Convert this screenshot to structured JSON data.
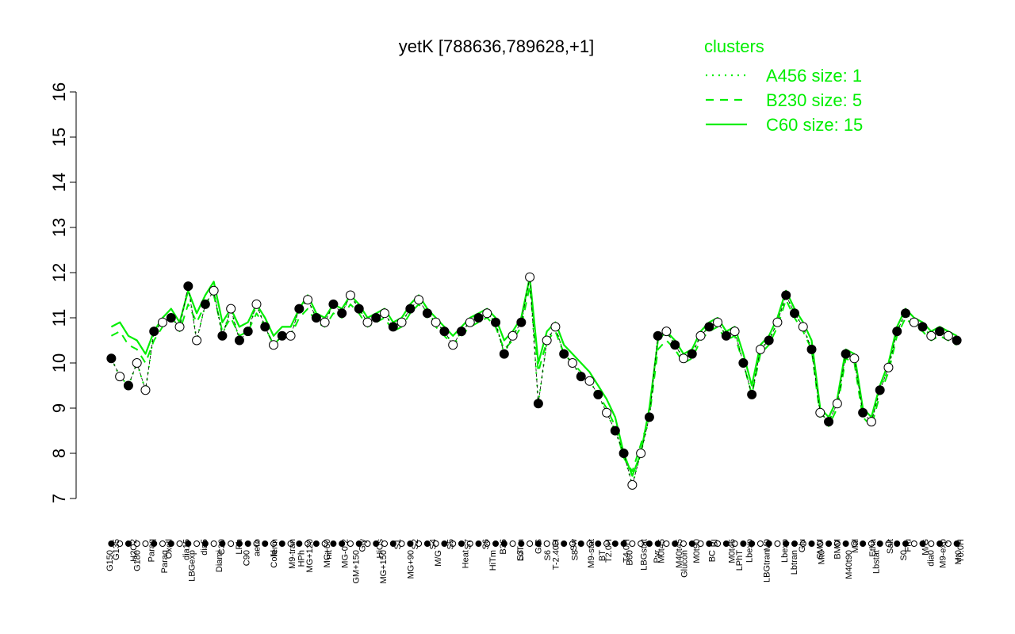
{
  "chart_data": {
    "type": "line",
    "title": "yetK [788636,789628,+1]",
    "xlabel": "",
    "ylabel": "",
    "ylim": [
      7,
      16
    ],
    "yticks": [
      7,
      8,
      9,
      10,
      11,
      12,
      13,
      14,
      15,
      16
    ],
    "grid": false,
    "legend_position": "top-right",
    "accent_color": "#00ee00",
    "legend": {
      "title": "clusters",
      "items": [
        {
          "label": "A456 size: 1",
          "dash": "dotted"
        },
        {
          "label": "B230 size: 5",
          "dash": "dashed"
        },
        {
          "label": "C60 size: 15",
          "dash": "solid"
        }
      ]
    },
    "x_tick_labels_top": [
      "G135",
      "H2O2",
      "Paraq",
      "Oxctl",
      "dia15",
      "dia5",
      "C30",
      "LPh",
      "aero",
      "ferm",
      "M9-tran",
      "MG+120",
      "MG+60",
      "MG-0.2",
      "Gly",
      "HiOs",
      "S1",
      "S2",
      "S4",
      "S5",
      "S7",
      "S6",
      "B36",
      "LoTm",
      "G/S",
      "T-2.40H",
      "Sw",
      "M9-stat",
      "T2.0H",
      "T4.0H",
      "LBGstat",
      "M0t45",
      "M40t45",
      "M0t90",
      "BI",
      "M0t45",
      "Lbexp",
      "M9",
      "Lbexp",
      "Glu",
      "SMM",
      "BMM",
      "Mal",
      "Etha",
      "Salt",
      "Fru",
      "M/G",
      "M9-exp",
      "T0.0H"
    ],
    "x_tick_labels_bottom": [
      "G150",
      "G180",
      "Paraq",
      "LBGexp",
      "Diami",
      "C90",
      "Cold",
      "HPh",
      "nit",
      "GM+150",
      "MG+150",
      "MG+90",
      "M/G",
      "Heat",
      "HiTm",
      "S3",
      "S6",
      "S8",
      "BT",
      "B60",
      "Pyr",
      "Glucon",
      "BC",
      "LPhT",
      "LBGtran",
      "Lbtran",
      "Mt0",
      "M40t90",
      "Lbstat",
      "S0",
      "dia0",
      "Mt0"
    ],
    "series_names_visible": false,
    "series": [
      {
        "cluster": "C60",
        "line": "solid",
        "x": [
          1,
          3,
          5,
          7,
          9,
          11,
          13,
          15,
          17,
          19,
          21,
          23,
          25,
          27,
          29,
          31,
          33,
          35,
          37,
          39,
          41,
          43,
          45,
          47,
          49,
          51,
          53,
          55,
          57,
          59,
          61,
          63,
          65,
          67,
          69,
          71,
          73,
          75,
          77,
          79,
          81,
          83,
          85,
          87,
          89,
          91,
          93,
          95,
          97,
          99,
          101,
          103,
          105,
          107,
          109,
          111,
          113,
          115,
          117,
          119,
          121,
          123,
          125,
          127,
          129,
          131,
          133,
          135,
          137,
          139,
          141,
          143,
          145,
          147,
          149,
          151,
          153,
          155,
          157,
          159,
          161,
          163,
          165,
          167,
          169,
          171,
          173,
          175,
          177,
          179,
          181,
          183,
          185,
          187,
          189,
          191,
          193,
          195,
          197,
          199
        ],
        "y": [
          10.8,
          10.9,
          10.6,
          10.5,
          10.2,
          10.7,
          11.0,
          11.2,
          10.9,
          11.6,
          11.1,
          11.5,
          11.8,
          10.9,
          11.2,
          10.8,
          10.9,
          11.3,
          11.0,
          10.6,
          10.8,
          10.8,
          11.2,
          11.5,
          11.1,
          11.0,
          11.3,
          11.2,
          11.5,
          11.3,
          11.0,
          11.1,
          11.2,
          10.9,
          11.0,
          11.3,
          11.5,
          11.2,
          11.0,
          10.8,
          10.6,
          10.8,
          11.0,
          11.1,
          11.2,
          11.0,
          10.5,
          10.7,
          11.0,
          11.9,
          10.0,
          10.7,
          10.9,
          10.4,
          10.2,
          10.0,
          9.8,
          9.5,
          9.2,
          8.8,
          8.0,
          7.5,
          8.0,
          9.0,
          10.5,
          10.7,
          10.5,
          10.2,
          10.3,
          10.7,
          10.9,
          11.0,
          10.7,
          10.8,
          10.2,
          9.5,
          10.4,
          10.6,
          11.0,
          11.6,
          11.2,
          10.9,
          10.5,
          9.0,
          8.8,
          9.2,
          10.3,
          10.2,
          9.0,
          8.8,
          9.5,
          10.0,
          10.8,
          11.2,
          11.0,
          10.9,
          10.7,
          10.8,
          10.7,
          10.6
        ]
      },
      {
        "cluster": "B230",
        "line": "dashed",
        "x": [
          1,
          3,
          5,
          7,
          9,
          11,
          13,
          15,
          17,
          19,
          21,
          23,
          25,
          27,
          29,
          31,
          33,
          35,
          37,
          39,
          41,
          43,
          45,
          47,
          49,
          51,
          53,
          55,
          57,
          59,
          61,
          63,
          65,
          67,
          69,
          71,
          73,
          75,
          77,
          79,
          81,
          83,
          85,
          87,
          89,
          91,
          93,
          95,
          97,
          99,
          101,
          103,
          105,
          107,
          109,
          111,
          113,
          115,
          117,
          119,
          121,
          123,
          125,
          127,
          129,
          131,
          133,
          135,
          137,
          139,
          141,
          143,
          145,
          147,
          149,
          151,
          153,
          155,
          157,
          159,
          161,
          163,
          165,
          167,
          169,
          171,
          173,
          175,
          177,
          179,
          181,
          183,
          185,
          187,
          189,
          191,
          193,
          195,
          197,
          199
        ],
        "y": [
          10.6,
          10.7,
          10.4,
          10.3,
          10.0,
          10.5,
          10.8,
          11.0,
          10.7,
          11.3,
          10.9,
          11.3,
          11.5,
          10.7,
          11.0,
          10.6,
          10.7,
          11.1,
          10.8,
          10.4,
          10.6,
          10.6,
          11.0,
          11.2,
          10.9,
          10.8,
          11.1,
          11.0,
          11.3,
          11.1,
          10.8,
          10.9,
          11.0,
          10.7,
          10.8,
          11.1,
          11.3,
          11.0,
          10.8,
          10.6,
          10.4,
          10.6,
          10.8,
          10.9,
          11.0,
          10.8,
          10.3,
          10.5,
          10.8,
          11.7,
          9.8,
          10.5,
          10.7,
          10.2,
          10.0,
          9.8,
          9.6,
          9.3,
          9.0,
          8.6,
          7.9,
          7.6,
          8.2,
          8.8,
          10.3,
          10.5,
          10.3,
          10.0,
          10.1,
          10.5,
          10.7,
          10.8,
          10.5,
          10.6,
          10.0,
          9.3,
          10.2,
          10.4,
          10.8,
          11.4,
          11.0,
          10.7,
          10.3,
          8.8,
          8.6,
          9.0,
          10.1,
          10.0,
          8.8,
          8.6,
          9.3,
          9.8,
          10.6,
          11.0,
          10.8,
          10.7,
          10.5,
          10.6,
          10.5,
          10.4
        ]
      },
      {
        "cluster": "A456",
        "line": "dotted",
        "x": [
          1,
          3,
          5,
          7,
          9,
          11,
          13,
          15,
          17,
          19,
          21,
          23,
          25,
          27,
          29,
          31,
          33,
          35,
          37,
          39,
          41,
          43,
          45,
          47,
          49,
          51,
          53,
          55,
          57,
          59,
          61,
          63,
          65,
          67,
          69,
          71,
          73,
          75,
          77,
          79,
          81,
          83,
          85,
          87,
          89,
          91,
          93,
          95,
          97,
          99,
          101,
          103,
          105,
          107,
          109,
          111,
          113,
          115,
          117,
          119,
          121,
          123,
          125,
          127,
          129,
          131,
          133,
          135,
          137,
          139,
          141,
          143,
          145,
          147,
          149,
          151,
          153,
          155,
          157,
          159,
          161,
          163,
          165,
          167,
          169,
          171,
          173,
          175,
          177,
          179,
          181,
          183,
          185,
          187,
          189,
          191,
          193,
          195,
          197,
          199
        ],
        "y": [
          10.1,
          9.7,
          9.5,
          10.0,
          9.4,
          10.7,
          10.9,
          11.0,
          10.8,
          11.7,
          10.5,
          11.3,
          11.6,
          10.6,
          11.2,
          10.5,
          10.7,
          11.3,
          10.8,
          10.4,
          10.6,
          10.6,
          11.2,
          11.4,
          11.0,
          10.9,
          11.3,
          11.1,
          11.5,
          11.2,
          10.9,
          11.0,
          11.1,
          10.8,
          10.9,
          11.2,
          11.4,
          11.1,
          10.9,
          10.7,
          10.4,
          10.7,
          10.9,
          11.0,
          11.1,
          10.9,
          10.2,
          10.6,
          10.9,
          11.9,
          9.1,
          10.5,
          10.8,
          10.2,
          10.0,
          9.7,
          9.6,
          9.3,
          8.9,
          8.5,
          8.0,
          7.3,
          8.0,
          8.8,
          10.6,
          10.7,
          10.4,
          10.1,
          10.2,
          10.6,
          10.8,
          10.9,
          10.6,
          10.7,
          10.0,
          9.3,
          10.3,
          10.5,
          10.9,
          11.5,
          11.1,
          10.8,
          10.3,
          8.9,
          8.7,
          9.1,
          10.2,
          10.1,
          8.9,
          8.7,
          9.4,
          9.9,
          10.7,
          11.1,
          10.9,
          10.8,
          10.6,
          10.7,
          10.6,
          10.5
        ]
      }
    ],
    "points": {
      "note_hidden": true,
      "x": [
        1,
        3,
        5,
        7,
        9,
        11,
        13,
        15,
        17,
        19,
        21,
        23,
        25,
        27,
        29,
        31,
        33,
        35,
        37,
        39,
        41,
        43,
        45,
        47,
        49,
        51,
        53,
        55,
        57,
        59,
        61,
        63,
        65,
        67,
        69,
        71,
        73,
        75,
        77,
        79,
        81,
        83,
        85,
        87,
        89,
        91,
        93,
        95,
        97,
        99,
        101,
        103,
        105,
        107,
        109,
        111,
        113,
        115,
        117,
        119,
        121,
        123,
        125,
        127,
        129,
        131,
        133,
        135,
        137,
        139,
        141,
        143,
        145,
        147,
        149,
        151,
        153,
        155,
        157,
        159,
        161,
        163,
        165,
        167,
        169,
        171,
        173,
        175,
        177,
        179,
        181,
        183,
        185,
        187,
        189,
        191,
        193,
        195,
        197,
        199
      ],
      "y": [
        10.1,
        9.7,
        9.5,
        10.0,
        9.4,
        10.7,
        10.9,
        11.0,
        10.8,
        11.7,
        10.5,
        11.3,
        11.6,
        10.6,
        11.2,
        10.5,
        10.7,
        11.3,
        10.8,
        10.4,
        10.6,
        10.6,
        11.2,
        11.4,
        11.0,
        10.9,
        11.3,
        11.1,
        11.5,
        11.2,
        10.9,
        11.0,
        11.1,
        10.8,
        10.9,
        11.2,
        11.4,
        11.1,
        10.9,
        10.7,
        10.4,
        10.7,
        10.9,
        11.0,
        11.1,
        10.9,
        10.2,
        10.6,
        10.9,
        11.9,
        9.1,
        10.5,
        10.8,
        10.2,
        10.0,
        9.7,
        9.6,
        9.3,
        8.9,
        8.5,
        8.0,
        7.3,
        8.0,
        8.8,
        10.6,
        10.7,
        10.4,
        10.1,
        10.2,
        10.6,
        10.8,
        10.9,
        10.6,
        10.7,
        10.0,
        9.3,
        10.3,
        10.5,
        10.9,
        11.5,
        11.1,
        10.8,
        10.3,
        8.9,
        8.7,
        9.1,
        10.2,
        10.1,
        8.9,
        8.7,
        9.4,
        9.9,
        10.7,
        11.1,
        10.9,
        10.8,
        10.6,
        10.7,
        10.6,
        10.5
      ],
      "filled": [
        1,
        0,
        1,
        0,
        0,
        1,
        0,
        1,
        0,
        1,
        0,
        1,
        0,
        1,
        0,
        1,
        1,
        0,
        1,
        0,
        1,
        0,
        1,
        0,
        1,
        0,
        1,
        1,
        0,
        1,
        0,
        1,
        0,
        1,
        0,
        1,
        0,
        1,
        0,
        1,
        0,
        1,
        0,
        1,
        0,
        1,
        1,
        0,
        1,
        0,
        1,
        0,
        0,
        1,
        0,
        1,
        0,
        1,
        0,
        1,
        1,
        0,
        0,
        1,
        1,
        0,
        1,
        0,
        1,
        0,
        1,
        0,
        1,
        0,
        1,
        1,
        0,
        1,
        0,
        1,
        1,
        0,
        1,
        0,
        1,
        0,
        1,
        0,
        1,
        0,
        1,
        0,
        1,
        1,
        0,
        1,
        0,
        1,
        0,
        1
      ]
    },
    "xlim": [
      0,
      200
    ]
  }
}
